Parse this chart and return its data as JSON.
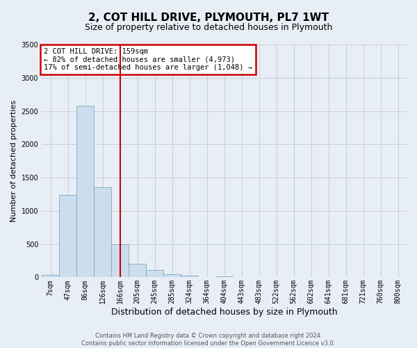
{
  "title": "2, COT HILL DRIVE, PLYMOUTH, PL7 1WT",
  "subtitle": "Size of property relative to detached houses in Plymouth",
  "xlabel": "Distribution of detached houses by size in Plymouth",
  "ylabel": "Number of detached properties",
  "bin_labels": [
    "7sqm",
    "47sqm",
    "86sqm",
    "126sqm",
    "166sqm",
    "205sqm",
    "245sqm",
    "285sqm",
    "324sqm",
    "364sqm",
    "404sqm",
    "443sqm",
    "483sqm",
    "522sqm",
    "562sqm",
    "602sqm",
    "641sqm",
    "681sqm",
    "721sqm",
    "760sqm",
    "800sqm"
  ],
  "bar_values": [
    40,
    1240,
    2580,
    1350,
    500,
    200,
    110,
    50,
    30,
    0,
    20,
    0,
    0,
    0,
    0,
    0,
    0,
    0,
    0,
    0,
    0
  ],
  "bar_color": "#ccdded",
  "bar_edge_color": "#7aaabb",
  "vline_x_index": 4,
  "vline_color": "#cc0000",
  "ylim": [
    0,
    3500
  ],
  "yticks": [
    0,
    500,
    1000,
    1500,
    2000,
    2500,
    3000,
    3500
  ],
  "annotation_line1": "2 COT HILL DRIVE: 159sqm",
  "annotation_line2": "← 82% of detached houses are smaller (4,973)",
  "annotation_line3": "17% of semi-detached houses are larger (1,048) →",
  "annotation_box_color": "#cc0000",
  "footer_line1": "Contains HM Land Registry data © Crown copyright and database right 2024.",
  "footer_line2": "Contains public sector information licensed under the Open Government Licence v3.0.",
  "background_color": "#e8eef5",
  "plot_bg_color": "#e8eef5",
  "grid_color": "#c5cedb",
  "title_fontsize": 11,
  "subtitle_fontsize": 9,
  "ylabel_fontsize": 8,
  "xlabel_fontsize": 9,
  "tick_fontsize": 7,
  "annotation_fontsize": 7.5,
  "footer_fontsize": 6
}
